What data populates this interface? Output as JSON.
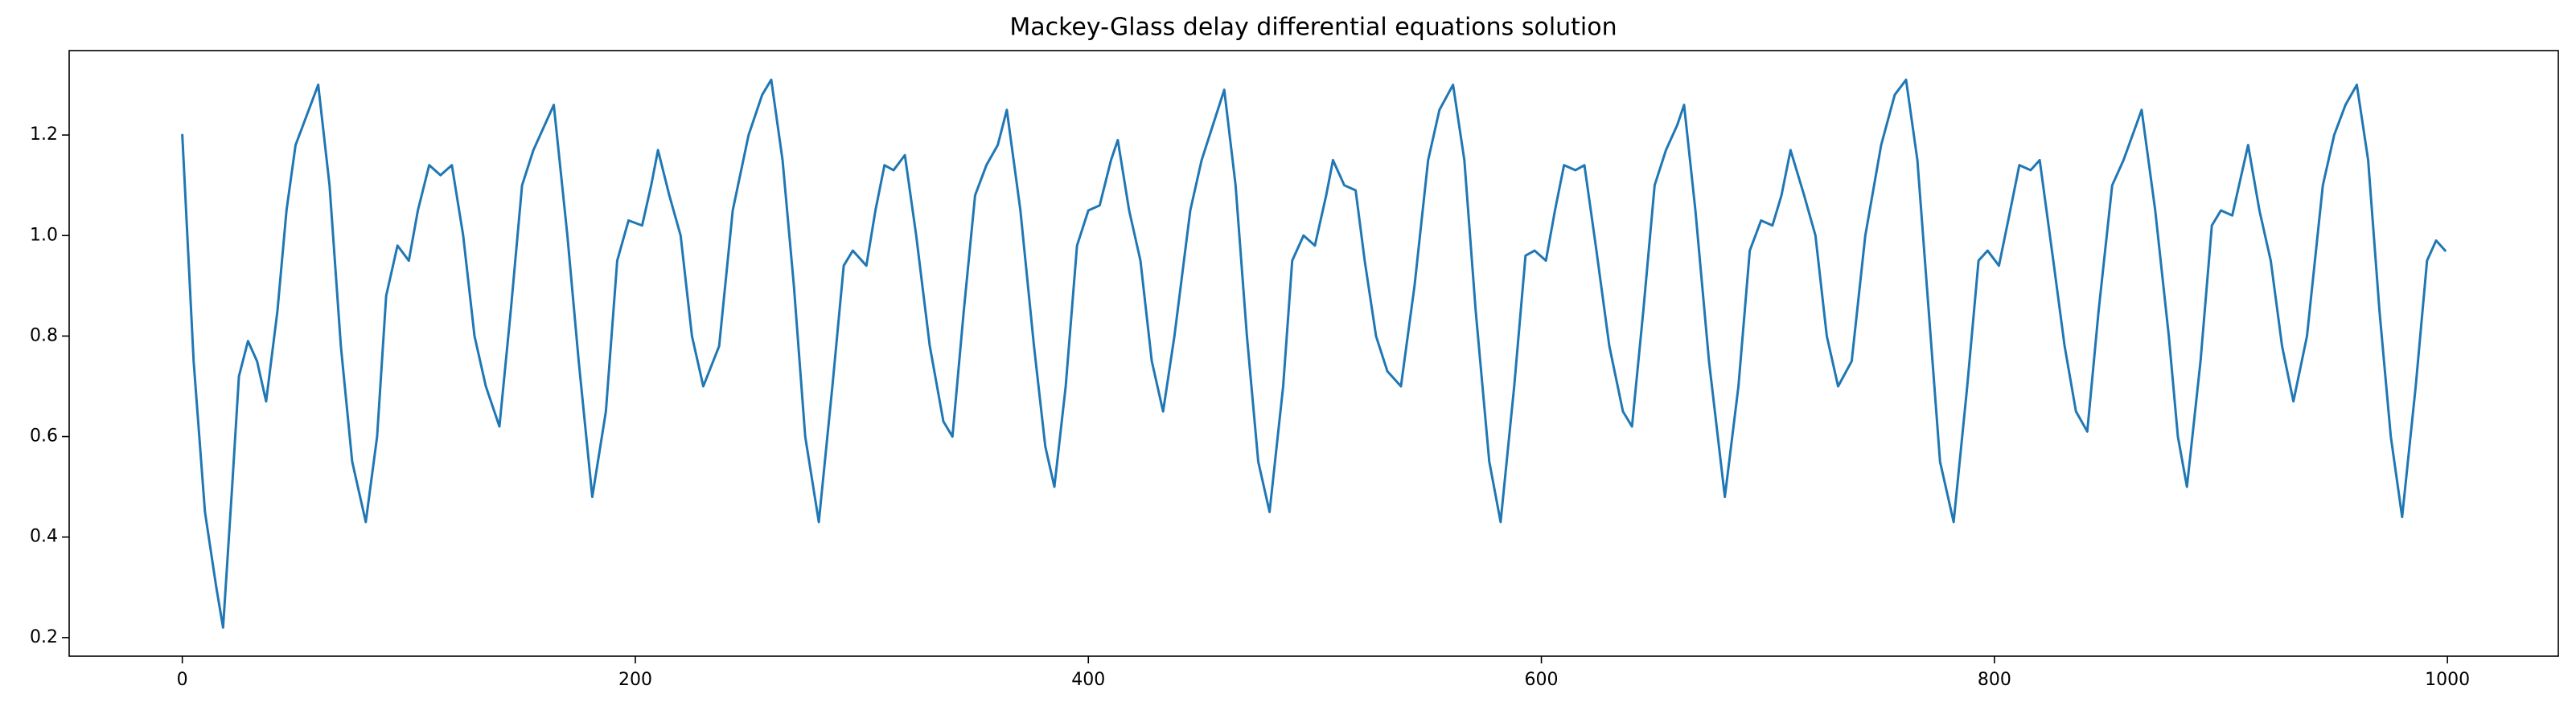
{
  "chart_data": {
    "type": "line",
    "title": "Mackey-Glass delay differential equations solution",
    "color": "#1f77b4",
    "x": [
      0,
      5,
      10,
      15,
      18,
      22,
      25,
      29,
      33,
      37,
      42,
      46,
      50,
      55,
      60,
      65,
      70,
      75,
      81,
      86,
      90,
      95,
      100,
      104,
      109,
      114,
      119,
      124,
      129,
      134,
      140,
      145,
      150,
      155,
      160,
      164,
      170,
      175,
      181,
      187,
      192,
      197,
      203,
      207,
      210,
      215,
      220,
      225,
      230,
      237,
      243,
      250,
      256,
      260,
      265,
      270,
      275,
      281,
      287,
      292,
      296,
      302,
      306,
      310,
      314,
      319,
      324,
      330,
      336,
      340,
      345,
      350,
      355,
      360,
      364,
      370,
      376,
      381,
      385,
      390,
      395,
      400,
      405,
      410,
      413,
      418,
      423,
      428,
      433,
      438,
      445,
      450,
      455,
      460,
      465,
      470,
      475,
      480,
      486,
      490,
      495,
      500,
      505,
      508,
      513,
      518,
      522,
      527,
      532,
      538,
      544,
      550,
      555,
      561,
      566,
      571,
      577,
      582,
      588,
      593,
      597,
      602,
      606,
      610,
      615,
      619,
      624,
      630,
      636,
      640,
      645,
      650,
      655,
      660,
      663,
      668,
      674,
      681,
      687,
      692,
      697,
      702,
      706,
      710,
      716,
      721,
      726,
      731,
      737,
      743,
      750,
      756,
      761,
      766,
      771,
      776,
      782,
      788,
      793,
      797,
      802,
      807,
      811,
      816,
      820,
      826,
      831,
      836,
      841,
      846,
      852,
      857,
      861,
      865,
      871,
      877,
      881,
      885,
      891,
      896,
      900,
      905,
      909,
      912,
      917,
      922,
      927,
      932,
      938,
      945,
      950,
      955,
      960,
      965,
      970,
      975,
      980,
      986,
      991,
      995,
      999
    ],
    "values": [
      1.2,
      0.75,
      0.45,
      0.3,
      0.22,
      0.5,
      0.72,
      0.79,
      0.75,
      0.67,
      0.85,
      1.05,
      1.18,
      1.24,
      1.3,
      1.1,
      0.78,
      0.55,
      0.43,
      0.6,
      0.88,
      0.98,
      0.95,
      1.05,
      1.14,
      1.12,
      1.14,
      1.0,
      0.8,
      0.7,
      0.62,
      0.85,
      1.1,
      1.17,
      1.22,
      1.26,
      1.0,
      0.75,
      0.48,
      0.65,
      0.95,
      1.03,
      1.02,
      1.1,
      1.17,
      1.08,
      1.0,
      0.8,
      0.7,
      0.78,
      1.05,
      1.2,
      1.28,
      1.31,
      1.15,
      0.9,
      0.6,
      0.43,
      0.7,
      0.94,
      0.97,
      0.94,
      1.05,
      1.14,
      1.13,
      1.16,
      1.0,
      0.78,
      0.63,
      0.6,
      0.85,
      1.08,
      1.14,
      1.18,
      1.25,
      1.05,
      0.78,
      0.58,
      0.5,
      0.7,
      0.98,
      1.05,
      1.06,
      1.15,
      1.19,
      1.05,
      0.95,
      0.75,
      0.65,
      0.8,
      1.05,
      1.15,
      1.22,
      1.29,
      1.1,
      0.8,
      0.55,
      0.45,
      0.7,
      0.95,
      1.0,
      0.98,
      1.08,
      1.15,
      1.1,
      1.09,
      0.95,
      0.8,
      0.73,
      0.7,
      0.9,
      1.15,
      1.25,
      1.3,
      1.15,
      0.85,
      0.55,
      0.43,
      0.7,
      0.96,
      0.97,
      0.95,
      1.05,
      1.14,
      1.13,
      1.14,
      0.98,
      0.78,
      0.65,
      0.62,
      0.85,
      1.1,
      1.17,
      1.22,
      1.26,
      1.05,
      0.75,
      0.48,
      0.7,
      0.97,
      1.03,
      1.02,
      1.08,
      1.17,
      1.08,
      1.0,
      0.8,
      0.7,
      0.75,
      1.0,
      1.18,
      1.28,
      1.31,
      1.15,
      0.85,
      0.55,
      0.43,
      0.7,
      0.95,
      0.97,
      0.94,
      1.05,
      1.14,
      1.13,
      1.15,
      0.95,
      0.78,
      0.65,
      0.61,
      0.85,
      1.1,
      1.15,
      1.2,
      1.25,
      1.05,
      0.8,
      0.6,
      0.5,
      0.75,
      1.02,
      1.05,
      1.04,
      1.12,
      1.18,
      1.05,
      0.95,
      0.78,
      0.67,
      0.8,
      1.1,
      1.2,
      1.26,
      1.3,
      1.15,
      0.85,
      0.6,
      0.44,
      0.7,
      0.95,
      0.99,
      0.97
    ],
    "xlim": [
      -49.95,
      1048.95
    ],
    "ylim": [
      0.163,
      1.368
    ],
    "xticks": [
      0,
      200,
      400,
      600,
      800,
      1000
    ],
    "yticks": [
      0.2,
      0.4,
      0.6,
      0.8,
      {
        "value": 1,
        "label": "1.0"
      },
      1.2
    ],
    "grid": false
  }
}
